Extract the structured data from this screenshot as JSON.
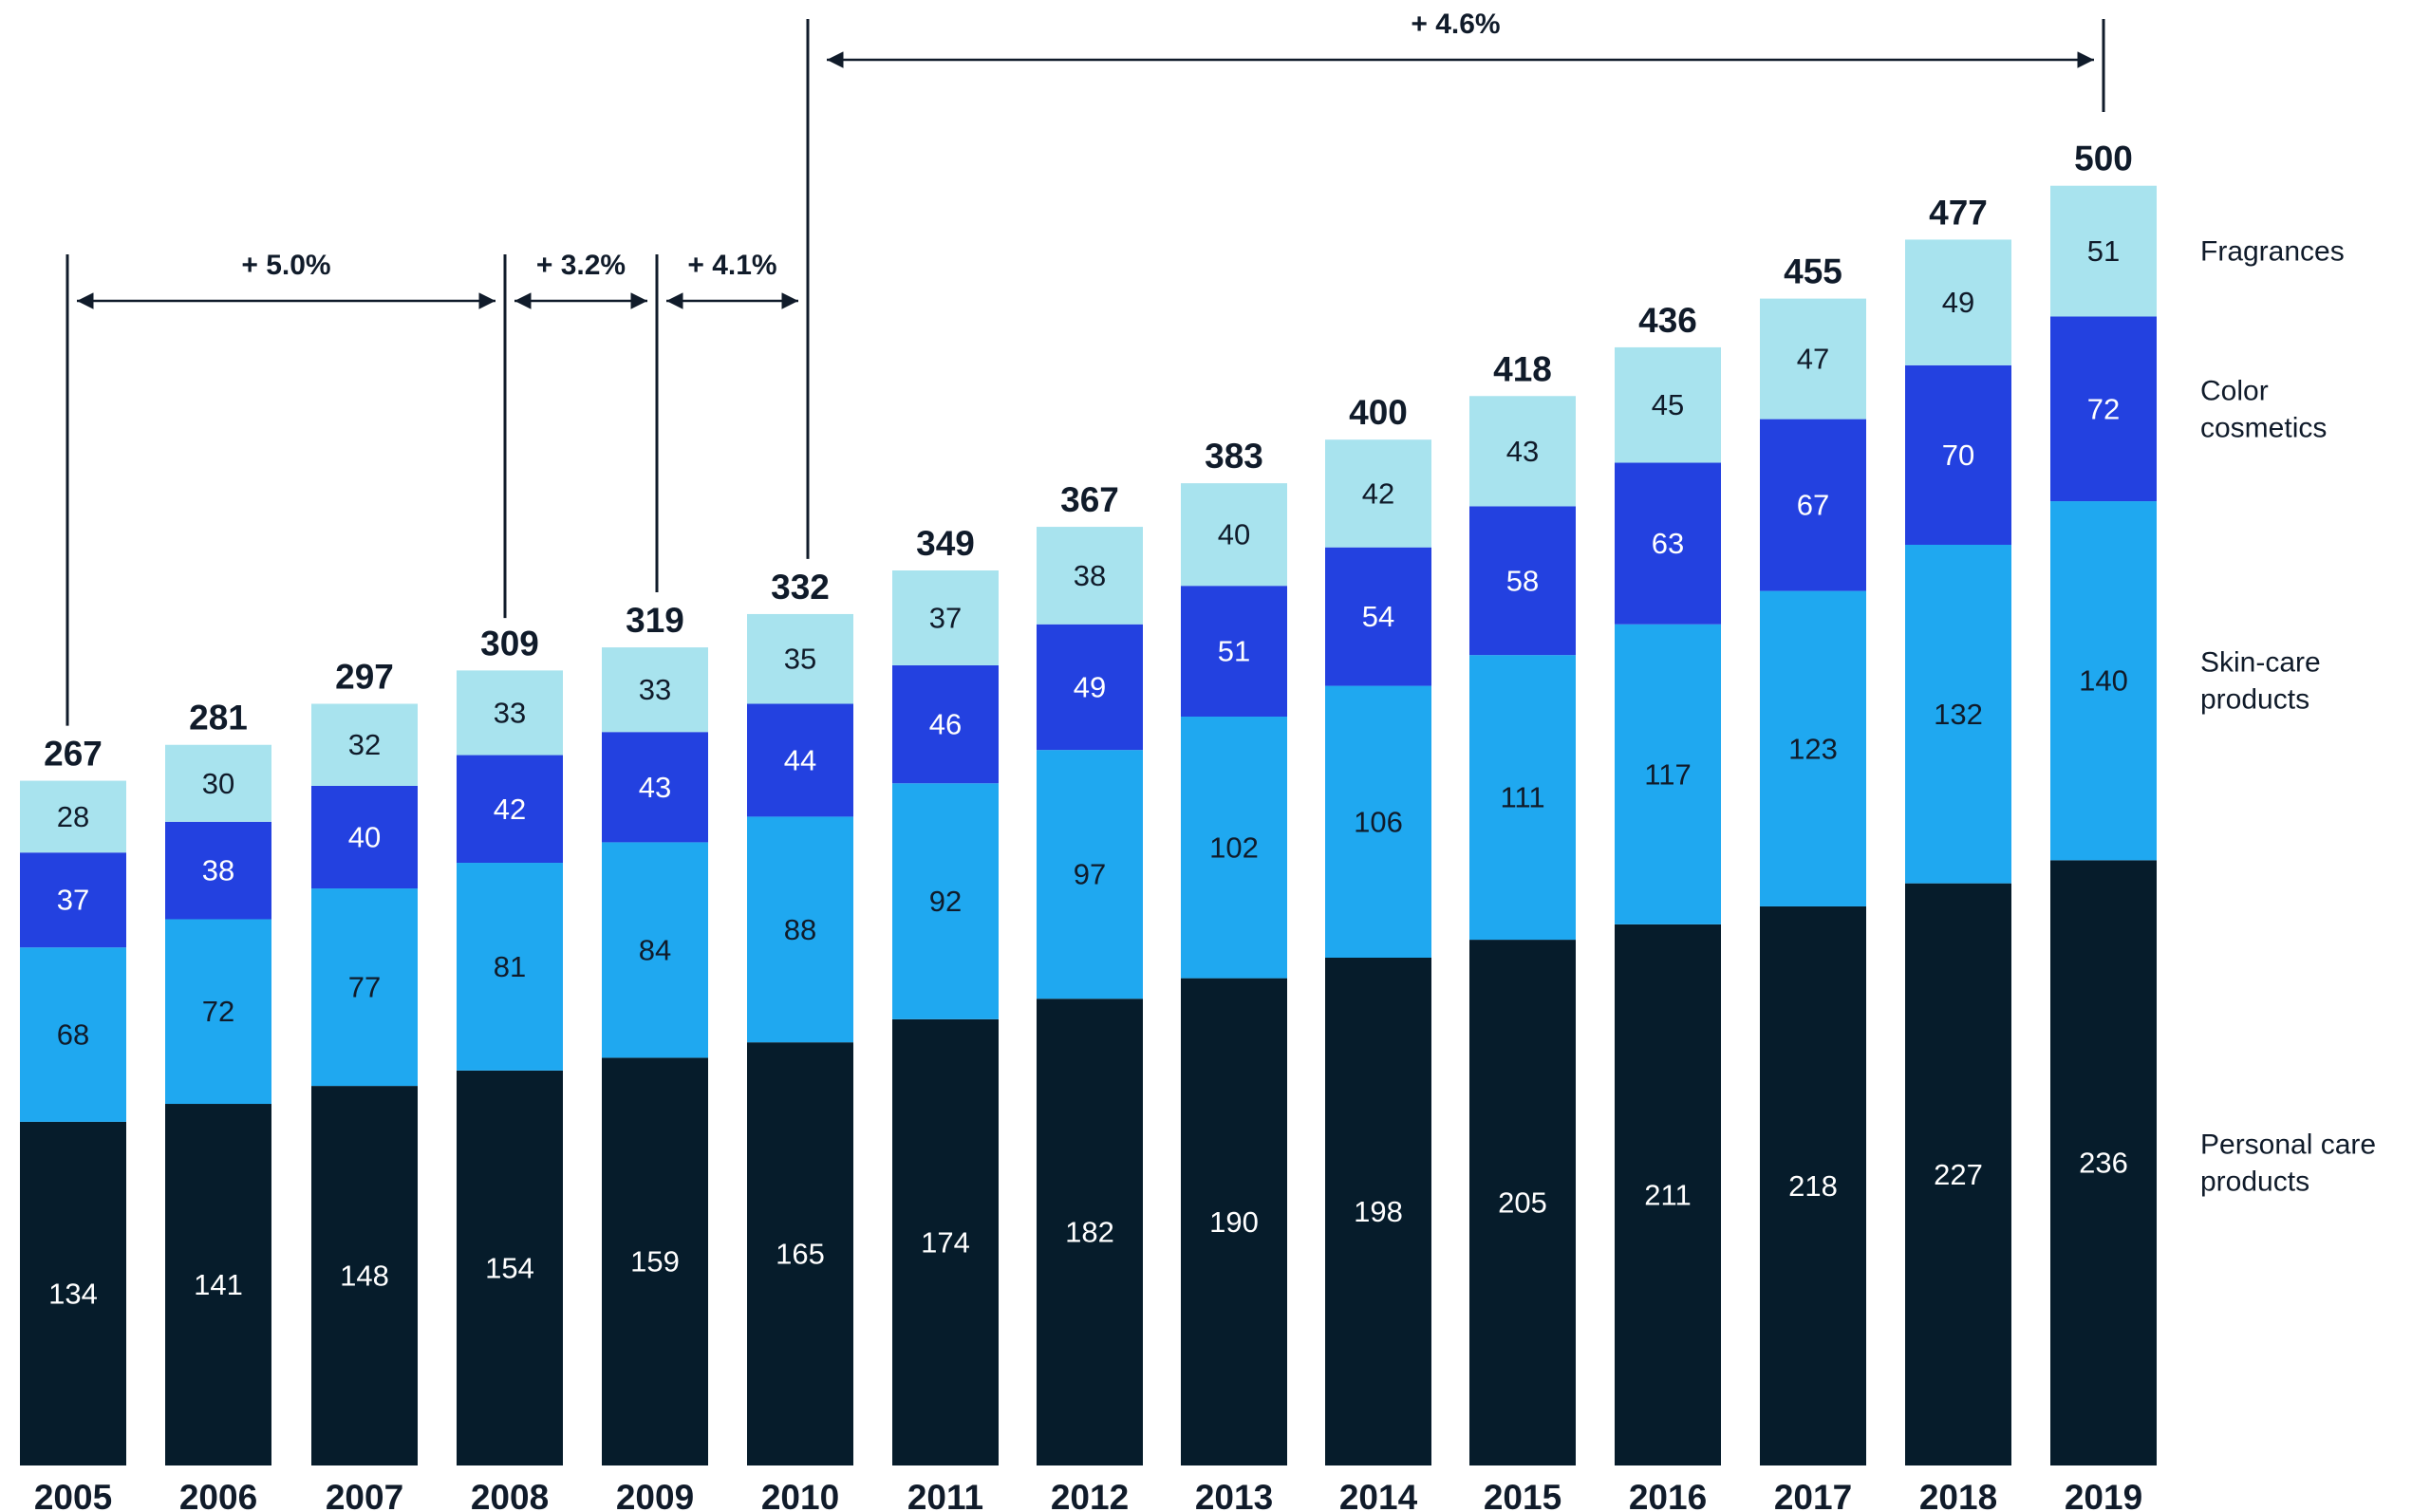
{
  "chart_data": {
    "type": "bar",
    "stacked": true,
    "categories": [
      "2005",
      "2006",
      "2007",
      "2008",
      "2009",
      "2010",
      "2011",
      "2012",
      "2013",
      "2014",
      "2015",
      "2016",
      "2017",
      "2018",
      "2019"
    ],
    "series": [
      {
        "name": "Personal care products",
        "color": "#061c2b",
        "label_color": "#ffffff",
        "values": [
          134,
          141,
          148,
          154,
          159,
          165,
          174,
          182,
          190,
          198,
          205,
          211,
          218,
          227,
          236
        ]
      },
      {
        "name": "Skin-care products",
        "color": "#1fa8f0",
        "label_color": "#101b2a",
        "values": [
          68,
          72,
          77,
          81,
          84,
          88,
          92,
          97,
          102,
          106,
          111,
          117,
          123,
          132,
          140
        ]
      },
      {
        "name": "Color cosmetics",
        "color": "#2341e0",
        "label_color": "#ffffff",
        "values": [
          37,
          38,
          40,
          42,
          43,
          44,
          46,
          49,
          51,
          54,
          58,
          63,
          67,
          70,
          72
        ]
      },
      {
        "name": "Fragrances",
        "color": "#a8e3ee",
        "label_color": "#101b2a",
        "values": [
          28,
          30,
          32,
          33,
          33,
          35,
          37,
          38,
          40,
          42,
          43,
          45,
          47,
          49,
          51
        ]
      }
    ],
    "totals": [
      267,
      281,
      297,
      309,
      319,
      332,
      349,
      367,
      383,
      400,
      418,
      436,
      455,
      477,
      500
    ],
    "legend": [
      {
        "lines": [
          "Fragrances"
        ]
      },
      {
        "lines": [
          "Color",
          "cosmetics"
        ]
      },
      {
        "lines": [
          "Skin-care",
          "products"
        ]
      },
      {
        "lines": [
          "Personal care",
          "products"
        ]
      }
    ],
    "cagr_annotations": [
      {
        "label": "+ 5.0%",
        "from": "2005",
        "to": "2008"
      },
      {
        "label": "+ 3.2%",
        "from": "2008",
        "to": "2009"
      },
      {
        "label": "+ 4.1%",
        "from": "2009",
        "to": "2010"
      },
      {
        "label": "+ 4.6%",
        "from": "2010",
        "to": "2019"
      }
    ],
    "ylim": [
      0,
      500
    ],
    "grid": false
  }
}
